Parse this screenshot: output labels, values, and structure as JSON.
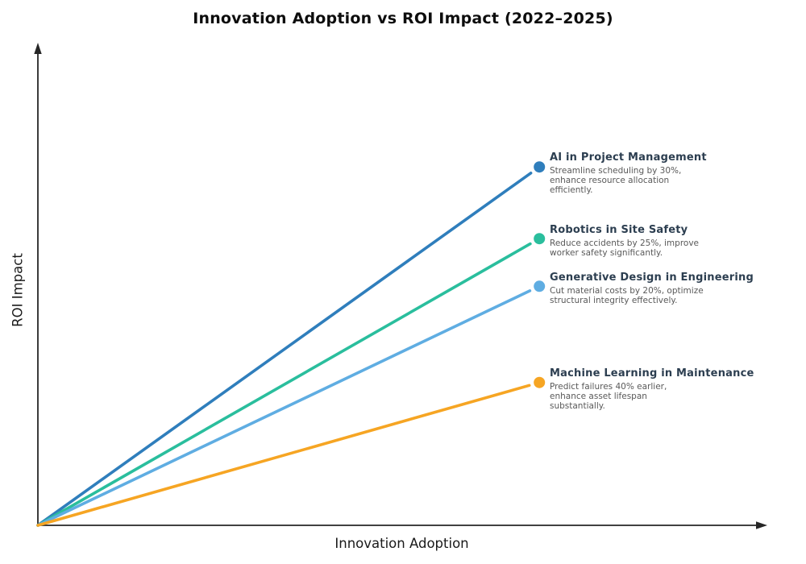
{
  "title": "Innovation Adoption vs ROI Impact (2022–2025)",
  "axes": {
    "x_label": "Innovation Adoption",
    "y_label": "ROI Impact"
  },
  "colors": {
    "background": "#ffffff",
    "axis": "#262626",
    "title_text": "#0d0d0d",
    "annotation_title": "#2c3e50",
    "annotation_description": "#595959"
  },
  "chart_data": {
    "type": "line",
    "title": "Innovation Adoption vs ROI Impact (2022–2025)",
    "xlabel": "Innovation Adoption",
    "ylabel": "ROI Impact",
    "axis_ranges": {
      "x": [
        0,
        1
      ],
      "y": [
        0,
        1
      ]
    },
    "ticks": "none",
    "grid": false,
    "legend": "none",
    "annotation_style": "rays from origin ending in dots with text labels",
    "series": [
      {
        "name": "AI in Project Management",
        "description": "Streamline scheduling by 30%,\nenhance resource allocation\nefficiently.",
        "color": "#2f7ebc",
        "x": [
          0,
          0.689
        ],
        "y": [
          0,
          0.745
        ]
      },
      {
        "name": "Robotics in Site Safety",
        "description": "Reduce accidents by 25%, improve\nworker safety significantly.",
        "color": "#2abe9d",
        "x": [
          0,
          0.689
        ],
        "y": [
          0,
          0.596
        ]
      },
      {
        "name": "Generative Design in Engineering",
        "description": "Cut material costs by 20%, optimize\nstructural integrity effectively.",
        "color": "#5fade2",
        "x": [
          0,
          0.689
        ],
        "y": [
          0,
          0.497
        ]
      },
      {
        "name": "Machine Learning in Maintenance",
        "description": "Predict failures 40% earlier,\nenhance asset lifespan\nsubstantially.",
        "color": "#f6a523",
        "x": [
          0,
          0.689
        ],
        "y": [
          0,
          0.297
        ]
      }
    ]
  }
}
